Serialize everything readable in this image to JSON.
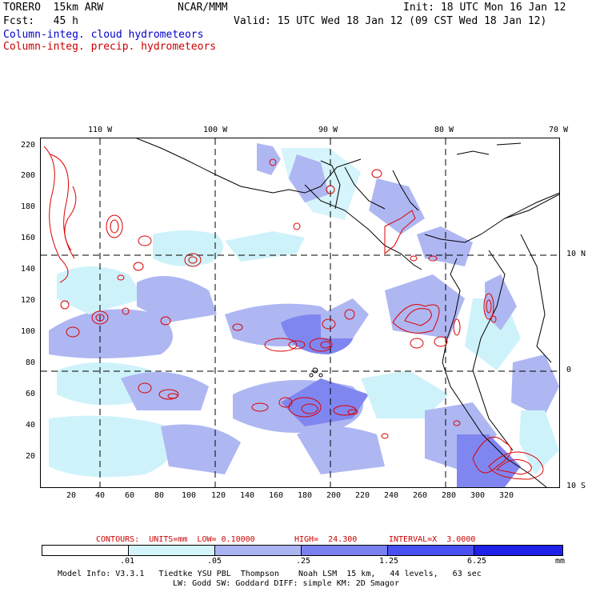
{
  "header": {
    "model": "TORERO  15km ARW",
    "org": "NCAR/MMM",
    "init": "Init: 18 UTC Mon 16 Jan 12",
    "fcst": "Fcst:   45 h",
    "valid": "Valid: 15 UTC Wed 18 Jan 12 (09 CST Wed 18 Jan 12)",
    "field1": "Column-integ. cloud hydrometeors",
    "field2": "Column-integ. precip. hydrometeors"
  },
  "map": {
    "lon_labels": [
      "110 W",
      "100 W",
      "90 W",
      "80 W",
      "70 W"
    ],
    "lat_labels": [
      "10 N",
      "0",
      "10 S"
    ],
    "y_ticks": [
      "220",
      "200",
      "180",
      "160",
      "140",
      "120",
      "100",
      "80",
      "60",
      "40",
      "20"
    ],
    "x_ticks": [
      "20",
      "40",
      "60",
      "80",
      "100",
      "120",
      "140",
      "160",
      "180",
      "200",
      "220",
      "240",
      "260",
      "280",
      "300",
      "320"
    ],
    "colors": {
      "cloud_light": "#ccf2fa",
      "cloud_mid": "#9fa8f0",
      "cloud_dark": "#6a6ff0",
      "precip_contour": "#dd0000",
      "coast": "#000000"
    }
  },
  "contour_info": {
    "contours": "CONTOURS:  UNITS=mm  LOW= 0.10000",
    "high": "HIGH=  24.300",
    "interval": "INTERVAL=X  3.0000"
  },
  "legend": {
    "labels": [
      ".01",
      ".05",
      ".25",
      "1.25",
      "6.25"
    ],
    "unit": "mm",
    "colors": [
      "#ffffff",
      "#d4f4fb",
      "#aab4f2",
      "#7a80f0",
      "#4a4ff2",
      "#2020e8"
    ]
  },
  "footer": {
    "line1": "Model Info: V3.3.1   Tiedtke YSU PBL  Thompson    Noah LSM  15 km,   44 levels,   63 sec",
    "line2": "LW: Godd SW: Goddard DIFF: simple KM: 2D Smagor"
  }
}
